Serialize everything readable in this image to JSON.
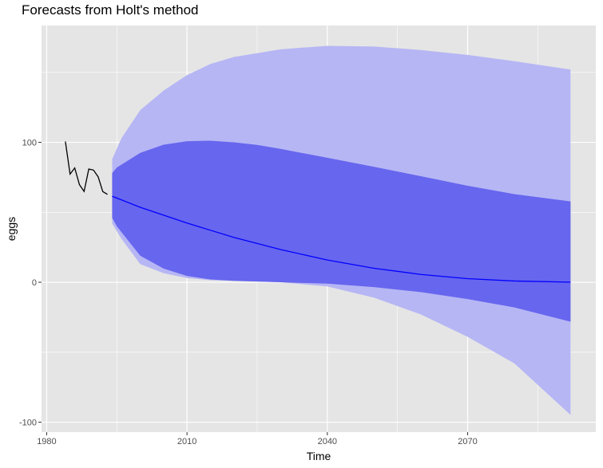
{
  "chart_data": {
    "type": "line",
    "title": "Forecasts from Holt's method",
    "xlabel": "Time",
    "ylabel": "eggs",
    "xlim": [
      1978.9,
      2097.4
    ],
    "ylim": [
      -107.1,
      183.5
    ],
    "xticks": [
      1980,
      2010,
      2040,
      2070
    ],
    "xtick_labels": [
      "1980",
      "2010",
      "2040",
      "2070"
    ],
    "yticks": [
      -100,
      0,
      100
    ],
    "ytick_labels": [
      "-100",
      "0",
      "100"
    ],
    "grid": true,
    "legend": "none",
    "colors": {
      "panel": "#e5e5e5",
      "grid": "#ffffff",
      "history": "#000000",
      "forecast": "#0000ff",
      "band80": "#6766ee",
      "band95": "#b6b6f5"
    },
    "series": [
      {
        "role": "history",
        "x": [
          1984,
          1985,
          1986,
          1987,
          1988,
          1989,
          1990,
          1991,
          1992,
          1993
        ],
        "y": [
          100.6,
          77.3,
          81.7,
          69.8,
          64.9,
          80.9,
          80.2,
          75.4,
          64.8,
          62.8
        ]
      },
      {
        "role": "point_forecast",
        "x": [
          1994,
          2000,
          2010,
          2020,
          2030,
          2040,
          2050,
          2060,
          2070,
          2080,
          2092
        ],
        "y": [
          61.5,
          53.6,
          42.3,
          32.1,
          23.4,
          15.9,
          10.0,
          5.6,
          2.6,
          0.9,
          0.1
        ]
      },
      {
        "role": "pi_80",
        "x": [
          1994,
          1995,
          2000,
          2005,
          2010,
          2015,
          2020,
          2025,
          2030,
          2040,
          2050,
          2060,
          2070,
          2080,
          2092
        ],
        "upper": [
          78.0,
          82.0,
          92.5,
          98.3,
          100.8,
          101.2,
          100.0,
          98.2,
          95.3,
          89.0,
          82.5,
          75.8,
          69.0,
          63.0,
          57.8
        ],
        "lower": [
          46.0,
          40.0,
          19.0,
          9.8,
          4.5,
          2.0,
          1.0,
          0.5,
          0.0,
          -1.0,
          -3.5,
          -7.0,
          -12.0,
          -18.0,
          -28.2
        ]
      },
      {
        "role": "pi_95",
        "x": [
          1994,
          1996,
          2000,
          2005,
          2010,
          2015,
          2020,
          2030,
          2040,
          2050,
          2060,
          2070,
          2080,
          2092
        ],
        "upper": [
          88.0,
          103.0,
          123.0,
          137.0,
          148.0,
          156.0,
          161.0,
          166.5,
          169.0,
          168.5,
          166.0,
          162.5,
          158.0,
          152.0
        ],
        "lower": [
          42.0,
          31.0,
          13.0,
          6.5,
          3.0,
          1.5,
          1.0,
          0.0,
          -3.0,
          -11.0,
          -23.0,
          -39.0,
          -58.0,
          -94.8
        ]
      }
    ]
  }
}
